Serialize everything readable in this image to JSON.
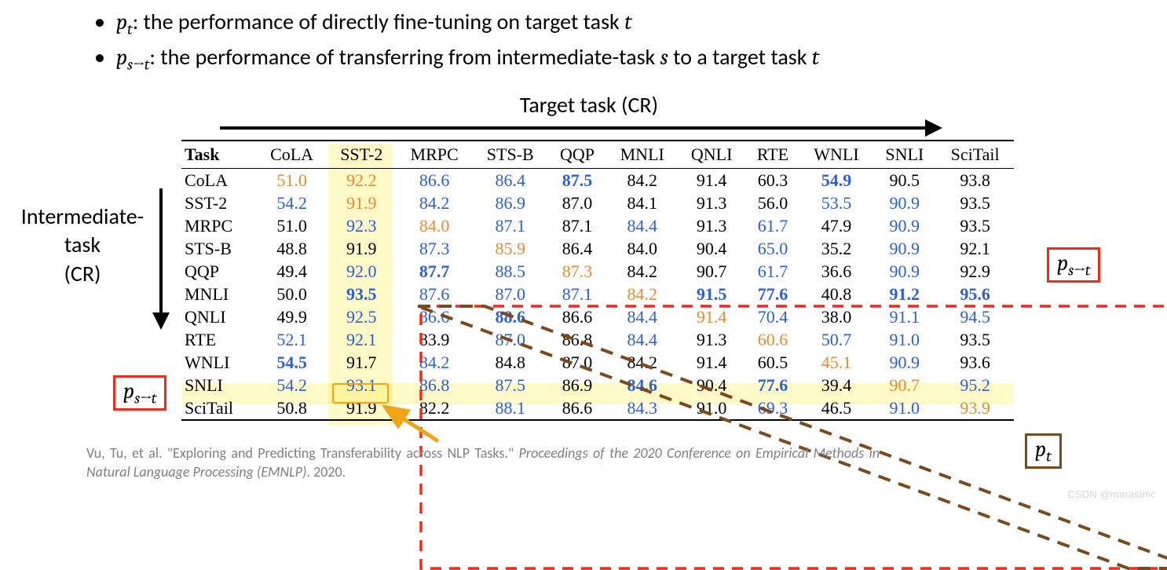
{
  "bullets": {
    "b1_pre": "p",
    "b1_sub": "t",
    "b1_text": ": the performance of directly fine-tuning on target task ",
    "b1_tail_var": "t",
    "b2_pre": "p",
    "b2_sub": "s→t",
    "b2_text": ": the performance of transferring from intermediate-task ",
    "b2_mid_var": "s",
    "b2_text2": " to a target task ",
    "b2_tail_var": "t"
  },
  "headers": {
    "top": "Target task (CR)",
    "side_l1": "Intermediate-",
    "side_l2": "task",
    "side_l3": "(CR)"
  },
  "table": {
    "task_header": "Task",
    "columns": [
      "CoLA",
      "SST-2",
      "MRPC",
      "STS-B",
      "QQP",
      "MNLI",
      "QNLI",
      "RTE",
      "WNLI",
      "SNLI",
      "SciTail"
    ],
    "row_labels": [
      "CoLA",
      "SST-2",
      "MRPC",
      "STS-B",
      "QQP",
      "MNLI",
      "QNLI",
      "RTE",
      "WNLI",
      "SNLI",
      "SciTail"
    ],
    "values": [
      [
        "51.0",
        "92.2",
        "86.6",
        "86.4",
        "87.5",
        "84.2",
        "91.4",
        "60.3",
        "54.9",
        "90.5",
        "93.8"
      ],
      [
        "54.2",
        "91.9",
        "84.2",
        "86.9",
        "87.0",
        "84.1",
        "91.3",
        "56.0",
        "53.5",
        "90.9",
        "93.5"
      ],
      [
        "51.0",
        "92.3",
        "84.0",
        "87.1",
        "87.1",
        "84.4",
        "91.3",
        "61.7",
        "47.9",
        "90.9",
        "93.5"
      ],
      [
        "48.8",
        "91.9",
        "87.3",
        "85.9",
        "86.4",
        "84.0",
        "90.4",
        "65.0",
        "35.2",
        "90.9",
        "92.1"
      ],
      [
        "49.4",
        "92.0",
        "87.7",
        "88.5",
        "87.3",
        "84.2",
        "90.7",
        "61.7",
        "36.6",
        "90.9",
        "92.9"
      ],
      [
        "50.0",
        "93.5",
        "87.6",
        "87.0",
        "87.1",
        "84.2",
        "91.5",
        "77.6",
        "40.8",
        "91.2",
        "95.6"
      ],
      [
        "49.9",
        "92.5",
        "86.6",
        "88.6",
        "86.6",
        "84.4",
        "91.4",
        "70.4",
        "38.0",
        "91.1",
        "94.5"
      ],
      [
        "52.1",
        "92.1",
        "83.9",
        "87.0",
        "86.8",
        "84.4",
        "91.3",
        "60.6",
        "50.7",
        "91.0",
        "93.5"
      ],
      [
        "54.5",
        "91.7",
        "84.2",
        "84.8",
        "87.0",
        "84.2",
        "91.4",
        "60.5",
        "45.1",
        "90.9",
        "93.6"
      ],
      [
        "54.2",
        "93.1",
        "86.8",
        "87.5",
        "86.9",
        "84.6",
        "90.4",
        "77.6",
        "39.4",
        "90.7",
        "95.2"
      ],
      [
        "50.8",
        "91.9",
        "82.2",
        "88.1",
        "86.6",
        "84.3",
        "91.0",
        "69.3",
        "46.5",
        "91.0",
        "93.9"
      ]
    ],
    "colors": [
      [
        "#e88b2e",
        "#e88b2e",
        "#2b5fd9",
        "#2b5fd9",
        "#2b5fd9",
        "#000000",
        "#000000",
        "#000000",
        "#2b5fd9",
        "#000000",
        "#000000"
      ],
      [
        "#2b5fd9",
        "#e88b2e",
        "#2b5fd9",
        "#2b5fd9",
        "#000000",
        "#000000",
        "#000000",
        "#000000",
        "#2b5fd9",
        "#2b5fd9",
        "#000000"
      ],
      [
        "#000000",
        "#2b5fd9",
        "#e88b2e",
        "#2b5fd9",
        "#000000",
        "#2b5fd9",
        "#000000",
        "#2b5fd9",
        "#000000",
        "#2b5fd9",
        "#000000"
      ],
      [
        "#000000",
        "#000000",
        "#2b5fd9",
        "#e88b2e",
        "#000000",
        "#000000",
        "#000000",
        "#2b5fd9",
        "#000000",
        "#2b5fd9",
        "#000000"
      ],
      [
        "#000000",
        "#2b5fd9",
        "#2b5fd9",
        "#2b5fd9",
        "#e88b2e",
        "#000000",
        "#000000",
        "#2b5fd9",
        "#000000",
        "#2b5fd9",
        "#000000"
      ],
      [
        "#000000",
        "#2b5fd9",
        "#2b5fd9",
        "#2b5fd9",
        "#2b5fd9",
        "#e88b2e",
        "#2b5fd9",
        "#2b5fd9",
        "#000000",
        "#2b5fd9",
        "#2b5fd9"
      ],
      [
        "#000000",
        "#2b5fd9",
        "#2b5fd9",
        "#2b5fd9",
        "#000000",
        "#2b5fd9",
        "#e88b2e",
        "#2b5fd9",
        "#000000",
        "#2b5fd9",
        "#2b5fd9"
      ],
      [
        "#2b5fd9",
        "#2b5fd9",
        "#000000",
        "#2b5fd9",
        "#000000",
        "#2b5fd9",
        "#000000",
        "#e88b2e",
        "#2b5fd9",
        "#2b5fd9",
        "#000000"
      ],
      [
        "#2b5fd9",
        "#000000",
        "#2b5fd9",
        "#000000",
        "#000000",
        "#000000",
        "#000000",
        "#000000",
        "#e88b2e",
        "#2b5fd9",
        "#000000"
      ],
      [
        "#2b5fd9",
        "#2b5fd9",
        "#2b5fd9",
        "#2b5fd9",
        "#000000",
        "#2b5fd9",
        "#000000",
        "#2b5fd9",
        "#000000",
        "#e88b2e",
        "#2b5fd9"
      ],
      [
        "#000000",
        "#000000",
        "#000000",
        "#2b5fd9",
        "#000000",
        "#2b5fd9",
        "#000000",
        "#2b5fd9",
        "#000000",
        "#2b5fd9",
        "#e88b2e"
      ]
    ],
    "bold": [
      [
        false,
        false,
        false,
        false,
        true,
        false,
        false,
        false,
        true,
        false,
        false
      ],
      [
        false,
        false,
        false,
        false,
        false,
        false,
        false,
        false,
        false,
        false,
        false
      ],
      [
        false,
        false,
        false,
        false,
        false,
        false,
        false,
        false,
        false,
        false,
        false
      ],
      [
        false,
        false,
        false,
        false,
        false,
        false,
        false,
        false,
        false,
        false,
        false
      ],
      [
        false,
        false,
        true,
        false,
        false,
        false,
        false,
        false,
        false,
        false,
        false
      ],
      [
        false,
        true,
        false,
        false,
        false,
        false,
        true,
        true,
        false,
        true,
        true
      ],
      [
        false,
        false,
        false,
        true,
        false,
        false,
        false,
        false,
        false,
        false,
        false
      ],
      [
        false,
        false,
        false,
        false,
        false,
        false,
        false,
        false,
        false,
        false,
        false
      ],
      [
        true,
        false,
        false,
        false,
        false,
        false,
        false,
        false,
        false,
        false,
        false
      ],
      [
        false,
        false,
        false,
        false,
        false,
        true,
        false,
        true,
        false,
        false,
        false
      ],
      [
        false,
        false,
        false,
        false,
        false,
        false,
        false,
        false,
        false,
        false,
        false
      ]
    ]
  },
  "labels": {
    "pst": "p",
    "pst_sub": "s→t",
    "pt": "p",
    "pt_sub": "t"
  },
  "citation": {
    "pre": "Vu, Tu, et al. \"Exploring and Predicting Transferability across NLP Tasks.\" ",
    "ital": "Proceedings of the 2020 Conference on Empirical Methods in Natural Language Processing (EMNLP)",
    "post": ". 2020."
  },
  "watermark": "CSDN @marasimc",
  "colors_meta": {
    "highlight_bg": "rgba(255,235,59,0.28)",
    "orange_border": "#f0a614",
    "red": "#f02b18",
    "brown": "#7a4a1c",
    "diagonal_orange": "#e88b2e",
    "blue": "#2b5fd9"
  }
}
